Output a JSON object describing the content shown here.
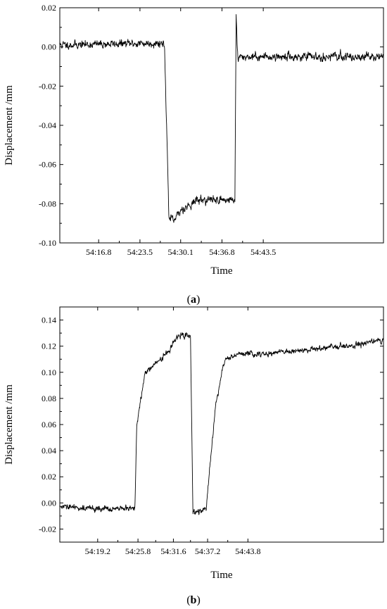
{
  "chart_data": [
    {
      "panel_label": "a",
      "type": "line",
      "title": "",
      "xlabel": "Time",
      "ylabel": "Displacement /mm",
      "ylim": [
        -0.1,
        0.02
      ],
      "yticks": [
        "0.02",
        "0.00",
        "-0.02",
        "-0.04",
        "-0.06",
        "-0.08",
        "-0.10"
      ],
      "ytick_values": [
        0.02,
        0.0,
        -0.02,
        -0.04,
        -0.06,
        -0.08,
        -0.1
      ],
      "xlim": [
        1010.5,
        1063.0
      ],
      "xticks": [
        "54:16.8",
        "54:23.5",
        "54:30.1",
        "54:36.8",
        "54:43.5"
      ],
      "xtick_values": [
        1016.8,
        1023.5,
        1030.1,
        1036.8,
        1043.5
      ],
      "grid": false,
      "series": [
        {
          "color": "#000000",
          "noise_sd": 0.0012,
          "x": [
            1010.5,
            1027.3,
            1027.5,
            1027.9,
            1028.2,
            1029.0,
            1030.2,
            1032.4,
            1032.7,
            1032.75,
            1033.2,
            1033.8,
            1035.0,
            1036.0,
            1037.2,
            1038.9,
            1039.1,
            1039.4,
            1039.6,
            1039.9,
            1040.2,
            1044.0,
            1050.0,
            1058.0,
            1063.0
          ],
          "y": [
            0.001,
            0.002,
            0.0,
            -0.05,
            -0.087,
            -0.089,
            -0.083,
            -0.079,
            -0.078,
            -0.078,
            -0.078,
            -0.078,
            -0.078,
            -0.078,
            -0.078,
            -0.078,
            0.016,
            -0.008,
            -0.006,
            -0.005,
            -0.005,
            -0.005,
            -0.005,
            -0.005,
            -0.005
          ]
        }
      ]
    },
    {
      "panel_label": "b",
      "type": "line",
      "title": "",
      "xlabel": "Time",
      "ylabel": "Displacement /mm",
      "ylim": [
        -0.03,
        0.15
      ],
      "yticks": [
        "0.14",
        "0.12",
        "0.10",
        "0.08",
        "0.06",
        "0.04",
        "0.02",
        "0.00",
        "-0.02"
      ],
      "ytick_values": [
        0.14,
        0.12,
        0.1,
        0.08,
        0.06,
        0.04,
        0.02,
        0.0,
        -0.02
      ],
      "xlim": [
        1013.0,
        1066.0
      ],
      "xticks": [
        "54:19.2",
        "54:25.8",
        "54:31.6",
        "54:37.2",
        "54:43.8"
      ],
      "xtick_values": [
        1019.2,
        1025.8,
        1031.6,
        1037.2,
        1043.8
      ],
      "grid": false,
      "series": [
        {
          "color": "#000000",
          "noise_sd": 0.0013,
          "x": [
            1013.0,
            1022.0,
            1024.9,
            1025.3,
            1025.6,
            1027.0,
            1028.5,
            1030.5,
            1031.3,
            1031.5,
            1031.6,
            1032.5,
            1034.1,
            1034.4,
            1034.8,
            1035.2,
            1036.0,
            1037.0,
            1038.5,
            1039.6,
            1039.8,
            1040.2,
            1042.0,
            1046.0,
            1050.0,
            1055.0,
            1060.0,
            1066.0
          ],
          "y": [
            -0.003,
            -0.005,
            -0.004,
            -0.005,
            0.06,
            0.1,
            0.106,
            0.114,
            0.12,
            0.122,
            0.123,
            0.127,
            0.129,
            0.127,
            -0.007,
            -0.007,
            -0.006,
            -0.004,
            0.075,
            0.1,
            0.106,
            0.11,
            0.114,
            0.114,
            0.116,
            0.118,
            0.12,
            0.125
          ]
        }
      ]
    }
  ],
  "captions": [
    "a",
    "b"
  ]
}
